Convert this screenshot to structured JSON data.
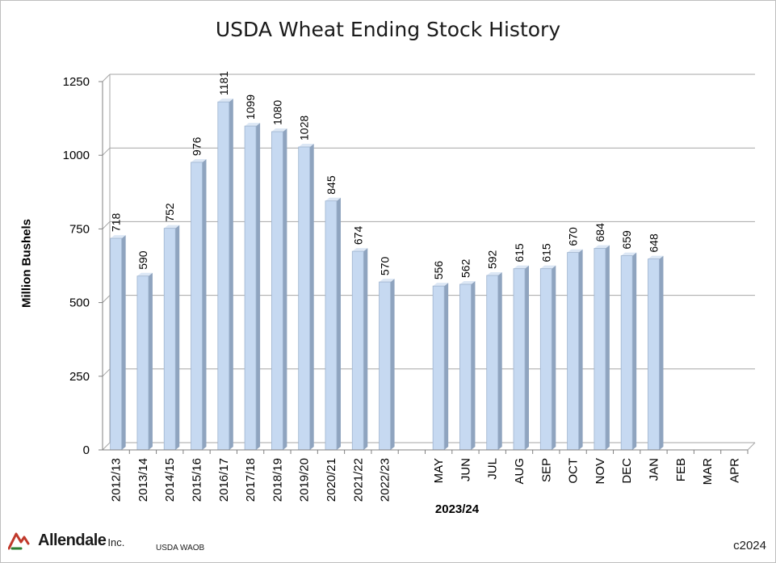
{
  "chart_data": {
    "type": "bar",
    "title": "USDA Wheat Ending Stock History",
    "ylabel": "Million Bushels",
    "group_label": "2023/24",
    "ylim": [
      0,
      1250
    ],
    "yticks": [
      0,
      250,
      500,
      750,
      1000,
      1250
    ],
    "grid": true,
    "legend": "none",
    "bar_color": "#c6d9f1",
    "categories": [
      "2012/13",
      "2013/14",
      "2014/15",
      "2015/16",
      "2016/17",
      "2017/18",
      "2018/19",
      "2019/20",
      "2020/21",
      "2021/22",
      "2022/23",
      "",
      "MAY",
      "JUN",
      "JUL",
      "AUG",
      "SEP",
      "OCT",
      "NOV",
      "DEC",
      "JAN",
      "FEB",
      "MAR",
      "APR"
    ],
    "values": [
      718,
      590,
      752,
      976,
      1181,
      1099,
      1080,
      1028,
      845,
      674,
      570,
      null,
      556,
      562,
      592,
      615,
      615,
      670,
      684,
      659,
      648,
      null,
      null,
      null
    ]
  },
  "footer": {
    "logo_name": "Allendale",
    "logo_inc": "Inc.",
    "source": "USDA WAOB",
    "copyright": "c2024"
  }
}
